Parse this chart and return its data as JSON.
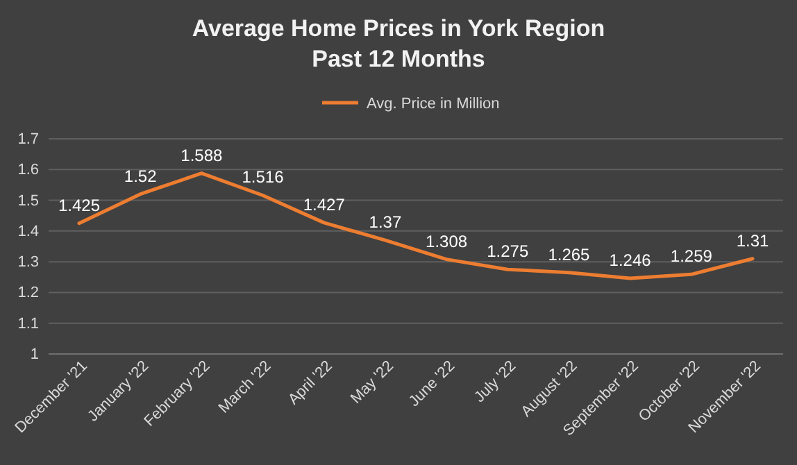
{
  "chart_data": {
    "type": "line",
    "title": "Average Home Prices in York Region\nPast 12 Months",
    "categories": [
      "December '21",
      "January '22",
      "February '22",
      "March '22",
      "April '22",
      "May '22",
      "June '22",
      "July '22",
      "August '22",
      "September '22",
      "October '22",
      "November '22"
    ],
    "series": [
      {
        "name": "Avg. Price in Million",
        "color": "#ed7d31",
        "values": [
          1.425,
          1.52,
          1.588,
          1.516,
          1.427,
          1.37,
          1.308,
          1.275,
          1.265,
          1.246,
          1.259,
          1.31
        ]
      }
    ],
    "ylim": [
      1,
      1.7
    ],
    "yticks": [
      1,
      1.1,
      1.2,
      1.3,
      1.4,
      1.5,
      1.6,
      1.7
    ],
    "grid": "y",
    "legend": "top",
    "data_labels": true,
    "marker": "none",
    "line_style": "solid"
  }
}
